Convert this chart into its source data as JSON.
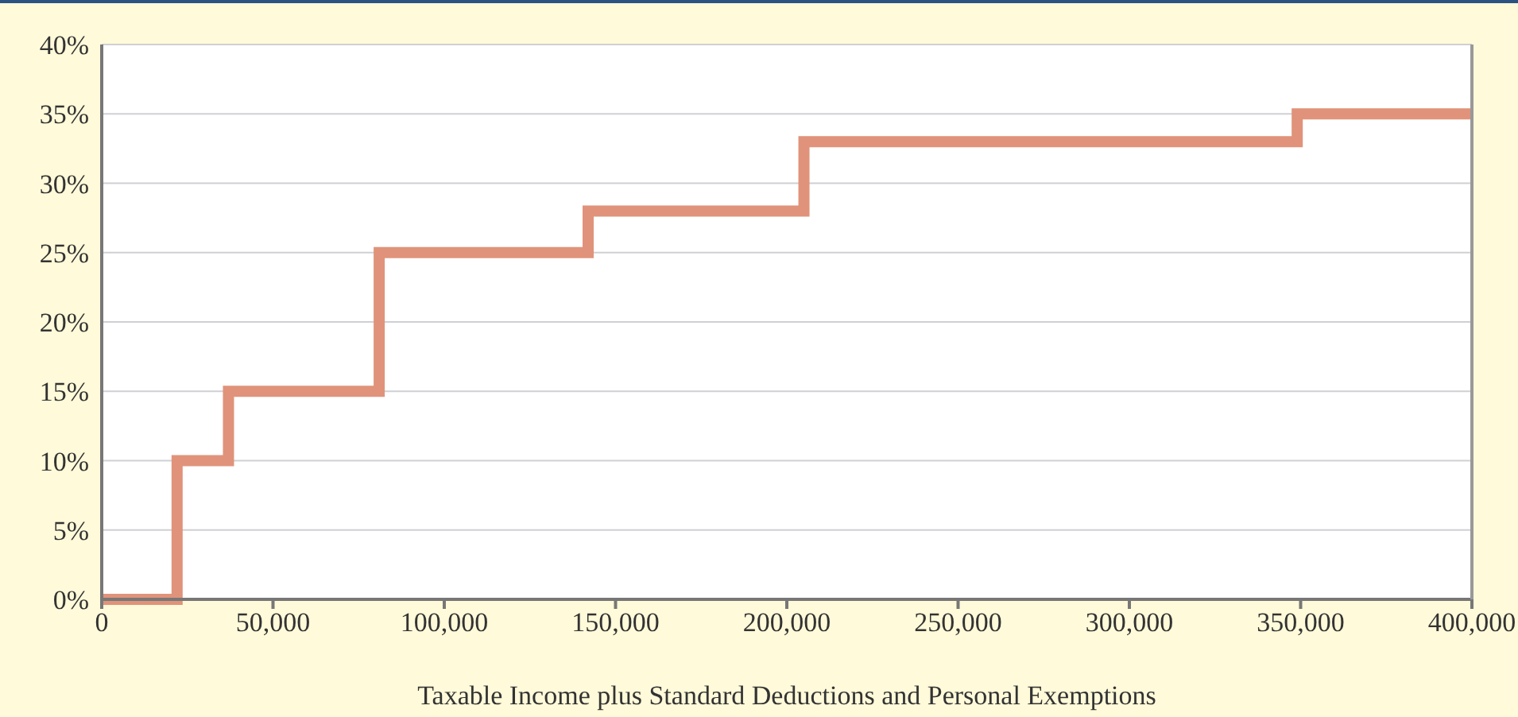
{
  "chart_data": {
    "type": "step",
    "xlabel": "Taxable Income plus Standard Deductions and Personal Exemptions",
    "x": [
      0,
      22000,
      37000,
      81000,
      142000,
      205000,
      349000,
      400000
    ],
    "series": [
      {
        "color": "#e0937a",
        "values": [
          0,
          10,
          15,
          25,
          28,
          33,
          35,
          35
        ]
      }
    ],
    "xlim": [
      0,
      400000
    ],
    "xticks": [
      0,
      {
        "value": 50000,
        "label": "50,000"
      },
      {
        "value": 100000,
        "label": "100,000"
      },
      {
        "value": 150000,
        "label": "150,000"
      },
      {
        "value": 200000,
        "label": "200,000"
      },
      {
        "value": 250000,
        "label": "250,000"
      },
      {
        "value": 300000,
        "label": "300,000"
      },
      {
        "value": 350000,
        "label": "350,000"
      },
      {
        "value": 400000,
        "label": "400,000"
      }
    ],
    "ylim": [
      0,
      40
    ],
    "yticks": [
      {
        "value": 0,
        "label": "0%"
      },
      {
        "value": 5,
        "label": "5%"
      },
      {
        "value": 10,
        "label": "10%"
      },
      {
        "value": 15,
        "label": "15%"
      },
      {
        "value": 20,
        "label": "20%"
      },
      {
        "value": 25,
        "label": "25%"
      },
      {
        "value": 30,
        "label": "30%"
      },
      {
        "value": 35,
        "label": "35%"
      },
      {
        "value": 40,
        "label": "40%"
      }
    ],
    "grid": "y",
    "legend": false
  }
}
